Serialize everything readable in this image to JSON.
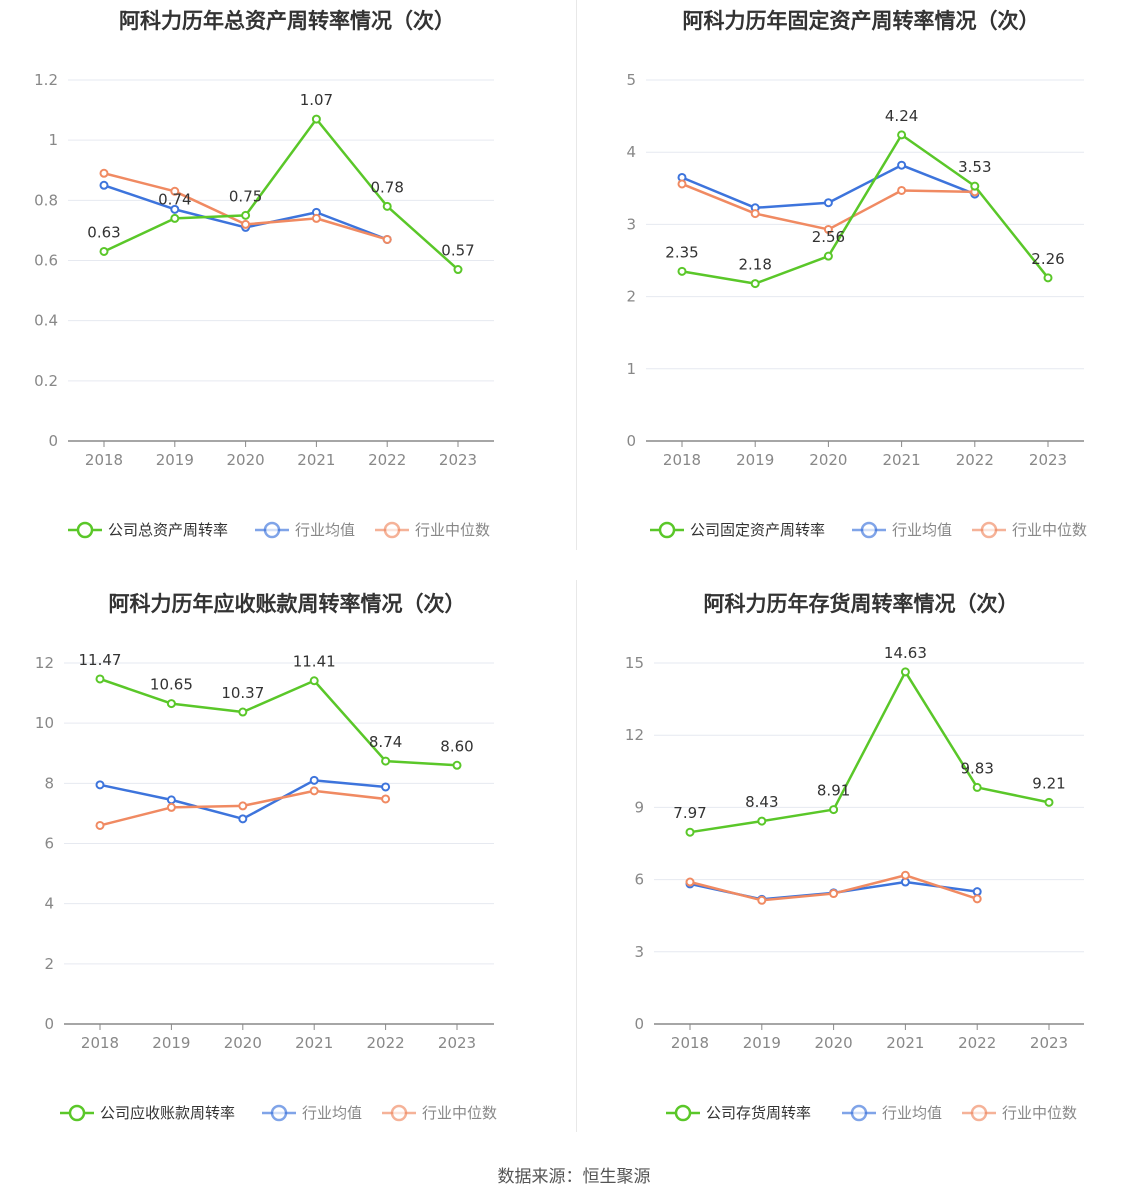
{
  "categories": [
    "2018",
    "2019",
    "2020",
    "2021",
    "2022",
    "2023"
  ],
  "source": "数据来源：恒生聚源",
  "colors": {
    "company": "#5ac729",
    "avg": "#3d74dc",
    "median": "#f08a62"
  },
  "chart_data": [
    {
      "type": "line",
      "title": "阿科力历年总资产周转率情况（次）",
      "categories": [
        "2018",
        "2019",
        "2020",
        "2021",
        "2022",
        "2023"
      ],
      "ylim": [
        0,
        1.2
      ],
      "yticks": [
        "0",
        "0.2",
        "0.4",
        "0.6",
        "0.8",
        "1",
        "1.2"
      ],
      "ytick_values": [
        0,
        0.2,
        0.4,
        0.6,
        0.8,
        1.0,
        1.2
      ],
      "series": [
        {
          "name": "公司总资产周转率",
          "values": [
            0.63,
            0.74,
            0.75,
            1.07,
            0.78,
            0.57
          ],
          "labels": [
            "0.63",
            "0.74",
            "0.75",
            "1.07",
            "0.78",
            "0.57"
          ]
        },
        {
          "name": "行业均值",
          "values": [
            0.85,
            0.77,
            0.71,
            0.76,
            0.67,
            null
          ]
        },
        {
          "name": "行业中位数",
          "values": [
            0.89,
            0.83,
            0.72,
            0.74,
            0.67,
            null
          ]
        }
      ]
    },
    {
      "type": "line",
      "title": "阿科力历年固定资产周转率情况（次）",
      "categories": [
        "2018",
        "2019",
        "2020",
        "2021",
        "2022",
        "2023"
      ],
      "ylim": [
        0,
        5
      ],
      "yticks": [
        "0",
        "1",
        "2",
        "3",
        "4",
        "5"
      ],
      "ytick_values": [
        0,
        1,
        2,
        3,
        4,
        5
      ],
      "series": [
        {
          "name": "公司固定资产周转率",
          "values": [
            2.35,
            2.18,
            2.56,
            4.24,
            3.53,
            2.26
          ],
          "labels": [
            "2.35",
            "2.18",
            "2.56",
            "4.24",
            "3.53",
            "2.26"
          ]
        },
        {
          "name": "行业均值",
          "values": [
            3.65,
            3.23,
            3.3,
            3.82,
            3.42,
            null
          ]
        },
        {
          "name": "行业中位数",
          "values": [
            3.56,
            3.15,
            2.93,
            3.47,
            3.45,
            null
          ]
        }
      ]
    },
    {
      "type": "line",
      "title": "阿科力历年应收账款周转率情况（次）",
      "categories": [
        "2018",
        "2019",
        "2020",
        "2021",
        "2022",
        "2023"
      ],
      "ylim": [
        0,
        12
      ],
      "yticks": [
        "0",
        "2",
        "4",
        "6",
        "8",
        "10",
        "12"
      ],
      "ytick_values": [
        0,
        2,
        4,
        6,
        8,
        10,
        12
      ],
      "series": [
        {
          "name": "公司应收账款周转率",
          "values": [
            11.47,
            10.65,
            10.37,
            11.41,
            8.74,
            8.6
          ],
          "labels": [
            "11.47",
            "10.65",
            "10.37",
            "11.41",
            "8.74",
            "8.60"
          ]
        },
        {
          "name": "行业均值",
          "values": [
            7.95,
            7.45,
            6.82,
            8.1,
            7.88,
            null
          ]
        },
        {
          "name": "行业中位数",
          "values": [
            6.6,
            7.2,
            7.25,
            7.75,
            7.48,
            null
          ]
        }
      ]
    },
    {
      "type": "line",
      "title": "阿科力历年存货周转率情况（次）",
      "categories": [
        "2018",
        "2019",
        "2020",
        "2021",
        "2022",
        "2023"
      ],
      "ylim": [
        0,
        15
      ],
      "yticks": [
        "0",
        "3",
        "6",
        "9",
        "12",
        "15"
      ],
      "ytick_values": [
        0,
        3,
        6,
        9,
        12,
        15
      ],
      "series": [
        {
          "name": "公司存货周转率",
          "values": [
            7.97,
            8.43,
            8.91,
            14.63,
            9.83,
            9.21
          ],
          "labels": [
            "7.97",
            "8.43",
            "8.91",
            "14.63",
            "9.83",
            "9.21"
          ]
        },
        {
          "name": "行业均值",
          "values": [
            5.82,
            5.18,
            5.45,
            5.9,
            5.5,
            null
          ]
        },
        {
          "name": "行业中位数",
          "values": [
            5.9,
            5.14,
            5.42,
            6.18,
            5.2,
            null
          ]
        }
      ]
    }
  ]
}
